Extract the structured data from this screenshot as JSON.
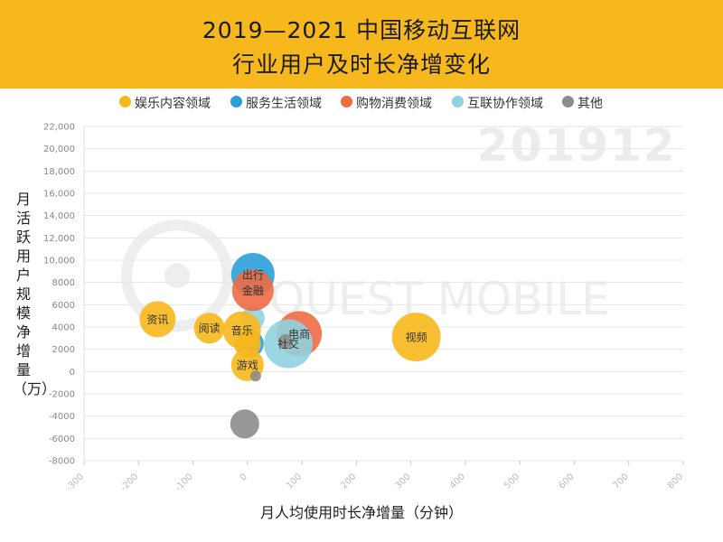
{
  "header": {
    "title_line1": "2019—2021 中国移动互联网",
    "title_line2": "行业用户及时长净增变化"
  },
  "watermark_text": "201912",
  "colors": {
    "header_bg": "#f7b81d",
    "entertainment": "#f7b81d",
    "services": "#2a9fd8",
    "shopping": "#ee6c43",
    "collaboration": "#8fd3e0",
    "other": "#8c8c8c"
  },
  "chart_data": {
    "type": "scatter",
    "xlabel": "月人均使用时长净增量（分钟）",
    "ylabel": "月活跃用户规模净增量（万）",
    "xlim": [
      -300,
      800
    ],
    "ylim": [
      -8000,
      22000
    ],
    "x_ticks": [
      "-300",
      "-200",
      "-100",
      "0",
      "100",
      "200",
      "300",
      "400",
      "500",
      "600",
      "700",
      "800"
    ],
    "y_ticks": [
      "22,000",
      "20,000",
      "18,000",
      "16,000",
      "14,000",
      "12,000",
      "10,000",
      "8000",
      "6000",
      "4000",
      "2000",
      "0",
      "-2000",
      "-4000",
      "-6000",
      "-8000"
    ],
    "grid": true,
    "legend_position": "top",
    "series": [
      {
        "name": "娱乐内容领域",
        "color_key": "entertainment"
      },
      {
        "name": "服务生活领域",
        "color_key": "services"
      },
      {
        "name": "购物消费领域",
        "color_key": "shopping"
      },
      {
        "name": "互联协作领域",
        "color_key": "collaboration"
      },
      {
        "name": "其他",
        "color_key": "other"
      }
    ],
    "points": [
      {
        "label": "",
        "series": 1,
        "x": 5,
        "y": 2500,
        "size": 30
      },
      {
        "label": "",
        "series": 3,
        "x": 10,
        "y": 4800,
        "size": 26
      },
      {
        "label": "电商",
        "series": 2,
        "x": 95,
        "y": 3400,
        "size": 50
      },
      {
        "label": "出行",
        "series": 1,
        "x": 10,
        "y": 8700,
        "size": 48
      },
      {
        "label": "金融",
        "series": 2,
        "x": 10,
        "y": 7300,
        "size": 46
      },
      {
        "label": "资讯",
        "series": 0,
        "x": -165,
        "y": 4700,
        "size": 40
      },
      {
        "label": "阅读",
        "series": 0,
        "x": -70,
        "y": 3900,
        "size": 34
      },
      {
        "label": "音乐",
        "series": 0,
        "x": -10,
        "y": 3700,
        "size": 42
      },
      {
        "label": "",
        "series": 0,
        "x": 0,
        "y": 2500,
        "size": 30
      },
      {
        "label": "视频",
        "series": 0,
        "x": 310,
        "y": 3100,
        "size": 54
      },
      {
        "label": "游戏",
        "series": 0,
        "x": 0,
        "y": 600,
        "size": 36
      },
      {
        "label": "",
        "series": 4,
        "x": 15,
        "y": -400,
        "size": 12
      },
      {
        "label": "社交",
        "series": 3,
        "x": 75,
        "y": 2500,
        "size": 54
      },
      {
        "label": "",
        "series": 4,
        "x": 70,
        "y": 2700,
        "size": 16
      },
      {
        "label": "",
        "series": 4,
        "x": -5,
        "y": -4700,
        "size": 32
      }
    ]
  }
}
